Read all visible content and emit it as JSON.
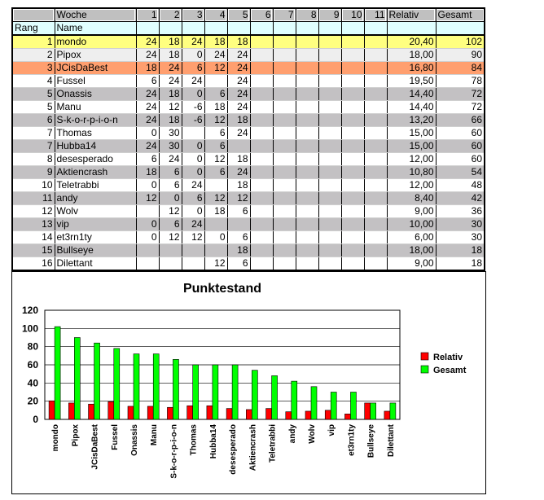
{
  "table": {
    "header": [
      "",
      "Woche",
      "1",
      "2",
      "3",
      "4",
      "5",
      "6",
      "7",
      "8",
      "9",
      "10",
      "11",
      "Relativ",
      "Gesamt"
    ],
    "subheader": [
      "Rang",
      "Name"
    ],
    "rows": [
      {
        "rang": "1",
        "name": "mondo",
        "w": [
          "24",
          "18",
          "24",
          "18",
          "18",
          "",
          "",
          "",
          "",
          "",
          ""
        ],
        "relativ": "20,40",
        "gesamt": "102",
        "bg": "#ffff80"
      },
      {
        "rang": "2",
        "name": "Pipox",
        "w": [
          "24",
          "18",
          "0",
          "24",
          "24",
          "",
          "",
          "",
          "",
          "",
          ""
        ],
        "relativ": "18,00",
        "gesamt": "90",
        "bg": "#eeeeee"
      },
      {
        "rang": "3",
        "name": "JCisDaBest",
        "w": [
          "18",
          "24",
          "6",
          "12",
          "24",
          "",
          "",
          "",
          "",
          "",
          ""
        ],
        "relativ": "16,80",
        "gesamt": "84",
        "bg": "#ff9f6f"
      },
      {
        "rang": "4",
        "name": "Fussel",
        "w": [
          "6",
          "24",
          "24",
          "",
          "24",
          "",
          "",
          "",
          "",
          "",
          ""
        ],
        "relativ": "19,50",
        "gesamt": "78",
        "bg": "#ffffff"
      },
      {
        "rang": "5",
        "name": "Onassis",
        "w": [
          "24",
          "18",
          "0",
          "6",
          "24",
          "",
          "",
          "",
          "",
          "",
          ""
        ],
        "relativ": "14,40",
        "gesamt": "72",
        "bg": "#c3c1c3"
      },
      {
        "rang": "5",
        "name": "Manu",
        "w": [
          "24",
          "12",
          "-6",
          "18",
          "24",
          "",
          "",
          "",
          "",
          "",
          ""
        ],
        "relativ": "14,40",
        "gesamt": "72",
        "bg": "#ffffff"
      },
      {
        "rang": "6",
        "name": "S-k-o-r-p-i-o-n",
        "w": [
          "24",
          "18",
          "-6",
          "12",
          "18",
          "",
          "",
          "",
          "",
          "",
          ""
        ],
        "relativ": "13,20",
        "gesamt": "66",
        "bg": "#c3c1c3"
      },
      {
        "rang": "7",
        "name": "Thomas",
        "w": [
          "0",
          "30",
          "",
          "6",
          "24",
          "",
          "",
          "",
          "",
          "",
          ""
        ],
        "relativ": "15,00",
        "gesamt": "60",
        "bg": "#ffffff"
      },
      {
        "rang": "7",
        "name": "Hubba14",
        "w": [
          "24",
          "30",
          "0",
          "6",
          "",
          "",
          "",
          "",
          "",
          "",
          ""
        ],
        "relativ": "15,00",
        "gesamt": "60",
        "bg": "#c3c1c3"
      },
      {
        "rang": "8",
        "name": "desesperado",
        "w": [
          "6",
          "24",
          "0",
          "12",
          "18",
          "",
          "",
          "",
          "",
          "",
          ""
        ],
        "relativ": "12,00",
        "gesamt": "60",
        "bg": "#ffffff"
      },
      {
        "rang": "9",
        "name": "Aktiencrash",
        "w": [
          "18",
          "6",
          "0",
          "6",
          "24",
          "",
          "",
          "",
          "",
          "",
          ""
        ],
        "relativ": "10,80",
        "gesamt": "54",
        "bg": "#c3c1c3"
      },
      {
        "rang": "10",
        "name": "Teletrabbi",
        "w": [
          "0",
          "6",
          "24",
          "",
          "18",
          "",
          "",
          "",
          "",
          "",
          ""
        ],
        "relativ": "12,00",
        "gesamt": "48",
        "bg": "#ffffff"
      },
      {
        "rang": "11",
        "name": "andy",
        "w": [
          "12",
          "0",
          "6",
          "12",
          "12",
          "",
          "",
          "",
          "",
          "",
          ""
        ],
        "relativ": "8,40",
        "gesamt": "42",
        "bg": "#c3c1c3"
      },
      {
        "rang": "12",
        "name": "Wolv",
        "w": [
          "",
          "12",
          "0",
          "18",
          "6",
          "",
          "",
          "",
          "",
          "",
          ""
        ],
        "relativ": "9,00",
        "gesamt": "36",
        "bg": "#ffffff"
      },
      {
        "rang": "13",
        "name": "vip",
        "w": [
          "0",
          "6",
          "24",
          "",
          "",
          "",
          "",
          "",
          "",
          "",
          ""
        ],
        "relativ": "10,00",
        "gesamt": "30",
        "bg": "#c3c1c3"
      },
      {
        "rang": "14",
        "name": "et3rn1ty",
        "w": [
          "0",
          "12",
          "12",
          "0",
          "6",
          "",
          "",
          "",
          "",
          "",
          ""
        ],
        "relativ": "6,00",
        "gesamt": "30",
        "bg": "#ffffff"
      },
      {
        "rang": "15",
        "name": "Bullseye",
        "w": [
          "",
          "",
          "",
          "",
          "18",
          "",
          "",
          "",
          "",
          "",
          ""
        ],
        "relativ": "18,00",
        "gesamt": "18",
        "bg": "#c3c1c3"
      },
      {
        "rang": "16",
        "name": "Dilettant",
        "w": [
          "",
          "",
          "",
          "12",
          "6",
          "",
          "",
          "",
          "",
          "",
          ""
        ],
        "relativ": "9,00",
        "gesamt": "18",
        "bg": "#ffffff"
      }
    ]
  },
  "chart_data": {
    "type": "bar",
    "title": "Punktestand",
    "categories": [
      "mondo",
      "Pipox",
      "JCisDaBest",
      "Fussel",
      "Onassis",
      "Manu",
      "S-k-o-r-p-i-o-n",
      "Thomas",
      "Hubba14",
      "desesperado",
      "Aktiencrash",
      "Teletrabbi",
      "andy",
      "Wolv",
      "vip",
      "et3rn1ty",
      "Bullseye",
      "Dilettant"
    ],
    "series": [
      {
        "name": "Relativ",
        "color": "#ff0000",
        "values": [
          20.4,
          18,
          16.8,
          19.5,
          14.4,
          14.4,
          13.2,
          15,
          15,
          12,
          10.8,
          12,
          8.4,
          9,
          10,
          6,
          18,
          9
        ]
      },
      {
        "name": "Gesamt",
        "color": "#00ff00",
        "values": [
          102,
          90,
          84,
          78,
          72,
          72,
          66,
          60,
          60,
          60,
          54,
          48,
          42,
          36,
          30,
          30,
          18,
          18
        ]
      }
    ],
    "ylim": [
      0,
      120
    ],
    "yticks": [
      "0",
      "20",
      "40",
      "60",
      "80",
      "100",
      "120"
    ],
    "grid": true,
    "legend": "right"
  }
}
